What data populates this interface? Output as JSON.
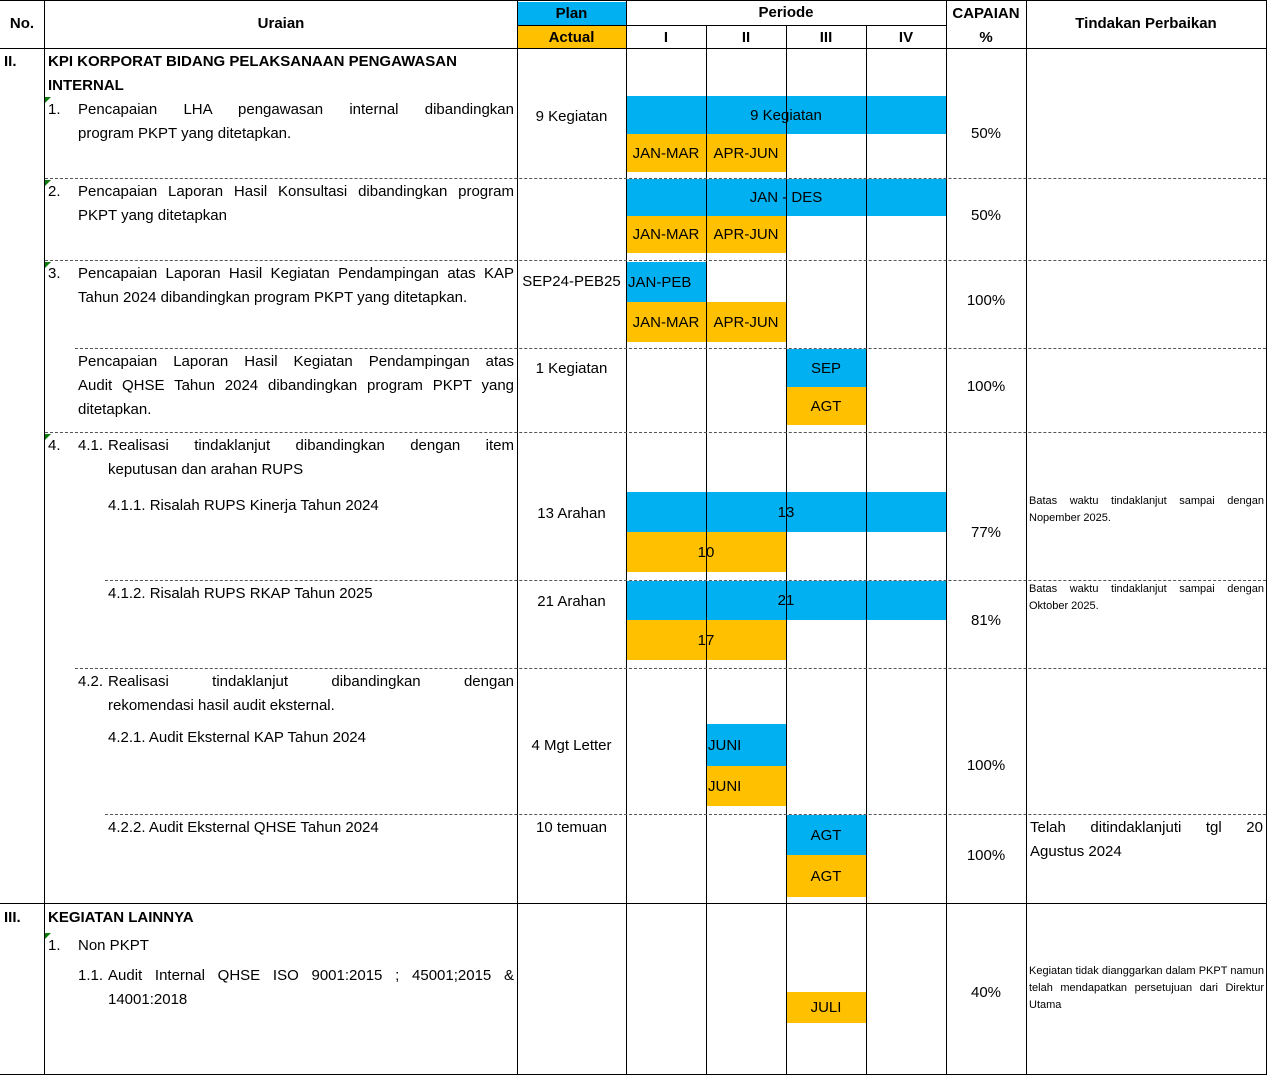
{
  "header": {
    "no": "No.",
    "uraian": "Uraian",
    "plan": "Plan",
    "actual": "Actual",
    "periode": "Periode",
    "q1": "I",
    "q2": "II",
    "q3": "III",
    "q4": "IV",
    "capaian": "CAPAIAN",
    "percent": "%",
    "tindakan": "Tindakan Perbaikan"
  },
  "section2": {
    "no": "II.",
    "title_line1": "KPI KORPORAT BIDANG PELAKSANAAN PENGAWASAN",
    "title_line2": "INTERNAL"
  },
  "rows": {
    "r1": {
      "num": "1.",
      "line1": "Pencapaian LHA pengawasan internal dibandingkan",
      "line2": "program PKPT yang ditetapkan.",
      "plan": "9 Kegiatan",
      "plan_bar": "9 Kegiatan",
      "actual_bar1": "JAN-MAR",
      "actual_bar2": "APR-JUN",
      "capaian": "50%"
    },
    "r2": {
      "num": "2.",
      "line1": "Pencapaian Laporan Hasil Konsultasi dibandingkan program",
      "line2": "PKPT yang ditetapkan",
      "plan_bar": "JAN - DES",
      "actual_bar1": "JAN-MAR",
      "actual_bar2": "APR-JUN",
      "capaian": "50%"
    },
    "r3": {
      "num": "3.",
      "line1": "Pencapaian Laporan Hasil Kegiatan Pendampingan atas KAP",
      "line2": "Tahun 2024 dibandingkan program PKPT yang ditetapkan.",
      "plan": "SEP24-PEB25",
      "plan_bar": "JAN-PEB",
      "actual_bar1": "JAN-MAR",
      "actual_bar2": "APR-JUN",
      "capaian": "100%"
    },
    "r3b": {
      "line1": "Pencapaian Laporan Hasil Kegiatan Pendampingan atas",
      "line2": "Audit QHSE Tahun 2024  dibandingkan program PKPT yang",
      "line3": "ditetapkan.",
      "plan": "1 Kegiatan",
      "plan_bar": "SEP",
      "actual_bar": "AGT",
      "capaian": "100%"
    },
    "r4": {
      "num": "4.",
      "sub": "4.1.",
      "line1": "Realisasi tindaklanjut dibandingkan dengan item",
      "line2": "keputusan dan arahan RUPS"
    },
    "r411": {
      "label": "4.1.1. Risalah RUPS Kinerja Tahun 2024",
      "plan": "13 Arahan",
      "plan_bar": "13",
      "actual_bar": "10",
      "capaian": "77%",
      "note": "Batas waktu tindaklanjut sampai dengan Nopember 2025."
    },
    "r412": {
      "label": "4.1.2. Risalah RUPS RKAP Tahun 2025",
      "plan": "21 Arahan",
      "plan_bar": "21",
      "actual_bar": "17",
      "capaian": "81%",
      "note": "Batas waktu tindaklanjut sampai dengan Oktober 2025."
    },
    "r42": {
      "sub": "4.2.",
      "line1": "Realisasi tindaklanjut dibandingkan dengan",
      "line2": "rekomendasi hasil audit eksternal."
    },
    "r421": {
      "label": "4.2.1. Audit Eksternal KAP Tahun 2024",
      "plan": "4 Mgt Letter",
      "plan_bar": "JUNI",
      "actual_bar": "JUNI",
      "capaian": "100%"
    },
    "r422": {
      "label": "4.2.2. Audit Eksternal QHSE Tahun 2024",
      "plan": "10 temuan",
      "plan_bar": "AGT",
      "actual_bar": "AGT",
      "capaian": "100%",
      "note_line1": "Telah ditindaklanjuti tgl 20",
      "note_line2": "Agustus 2024"
    }
  },
  "section3": {
    "no": "III.",
    "title": "KEGIATAN LAINNYA",
    "r1": {
      "num": "1.",
      "label": "Non PKPT"
    },
    "r11": {
      "sub": "1.1.",
      "line1": "Audit Internal QHSE ISO 9001:2015 ; 45001;2015 &",
      "line2": "14001:2018",
      "actual_bar": "JULI",
      "capaian": "40%",
      "note": "Kegiatan tidak dianggarkan dalam PKPT namun telah mendapatkan persetujuan dari Direktur Utama"
    }
  },
  "colors": {
    "plan": "#00b0f0",
    "actual": "#ffc000"
  }
}
